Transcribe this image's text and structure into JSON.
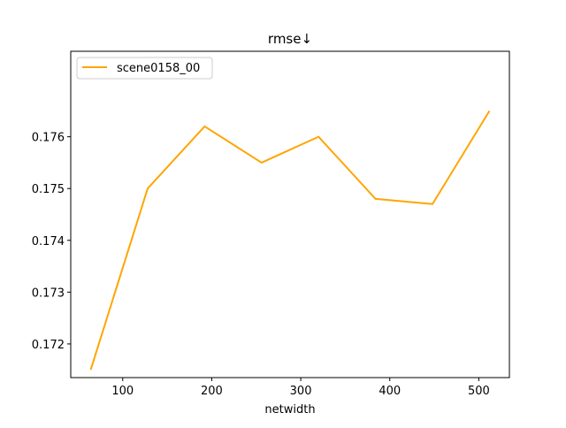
{
  "chart_data": {
    "type": "line",
    "title": "rmse↓",
    "xlabel": "netwidth",
    "ylabel": "",
    "xlim": [
      41.6,
      534.4
    ],
    "ylim": [
      0.17135,
      0.17765
    ],
    "xticks": [
      100,
      200,
      300,
      400,
      500
    ],
    "xtick_labels": [
      "100",
      "200",
      "300",
      "400",
      "500"
    ],
    "yticks": [
      0.172,
      0.173,
      0.174,
      0.175,
      0.176
    ],
    "ytick_labels": [
      "0.172",
      "0.173",
      "0.174",
      "0.175",
      "0.176"
    ],
    "grid": false,
    "legend_position": "top-left",
    "series": [
      {
        "name": "scene0158_00",
        "color": "#ffa500",
        "x": [
          64,
          128,
          192,
          256,
          320,
          384,
          448,
          512
        ],
        "y": [
          0.1715,
          0.175,
          0.1762,
          0.1755,
          0.176,
          0.1748,
          0.1747,
          0.1765
        ]
      }
    ]
  }
}
